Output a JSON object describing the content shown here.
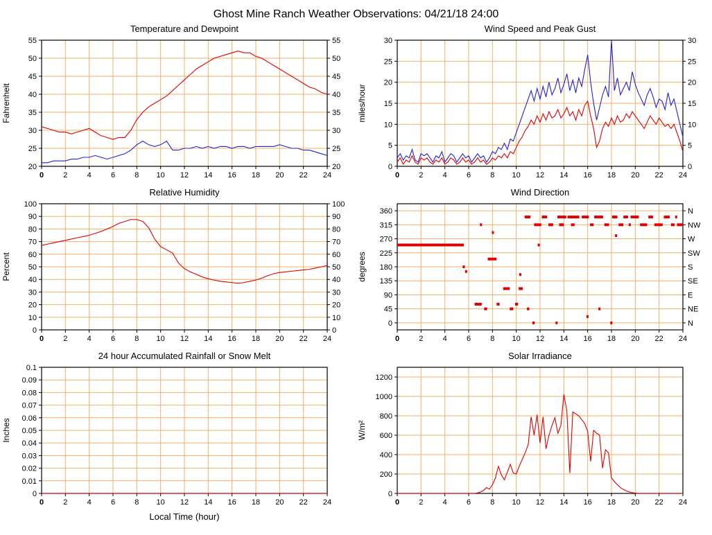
{
  "page_title": "Ghost Mine Ranch Weather Observations: 04/21/18 24:00",
  "colors": {
    "red": "#e00000",
    "blue": "#2020d0",
    "grid": "#efb267",
    "axis": "#000000",
    "plot_bg": "#ffffff"
  },
  "x_axis": {
    "min": 0,
    "max": 24,
    "ticks": [
      0,
      2,
      4,
      6,
      8,
      10,
      12,
      14,
      16,
      18,
      20,
      22,
      24
    ]
  },
  "chart_data": [
    {
      "id": "temperature-dewpoint",
      "type": "line",
      "title": "Temperature and Dewpoint",
      "ylabel": "Fahrenheit",
      "ylim": [
        20,
        55
      ],
      "yticks": [
        20,
        25,
        30,
        35,
        40,
        45,
        50,
        55
      ],
      "right": "mirror",
      "series": [
        {
          "name": "temperature",
          "color": "red",
          "x0": 0,
          "dx": 0.5,
          "y": [
            31,
            30.5,
            30,
            29.5,
            29.5,
            29,
            29.5,
            30,
            30.5,
            29.5,
            28.5,
            28,
            27.5,
            28,
            28,
            30,
            33,
            35,
            36.5,
            37.5,
            38.5,
            39.5,
            41,
            42.5,
            44,
            45.5,
            47,
            48,
            49,
            50,
            50.5,
            51,
            51.5,
            52,
            51.5,
            51.5,
            50.5,
            50,
            49,
            48,
            47,
            46,
            45,
            44,
            43,
            42,
            41.5,
            40.5,
            40
          ]
        },
        {
          "name": "dewpoint",
          "color": "blue",
          "x0": 0,
          "dx": 0.5,
          "y": [
            21,
            21,
            21.5,
            21.5,
            21.5,
            22,
            22,
            22.5,
            22.5,
            23,
            22.5,
            22,
            22.5,
            23,
            23.5,
            24.5,
            26,
            27,
            26,
            25.5,
            26,
            27,
            24.5,
            24.5,
            25,
            25,
            25.5,
            25,
            25.5,
            25,
            25.5,
            25.5,
            25,
            25.5,
            25.5,
            25,
            25.5,
            25.5,
            25.5,
            25.5,
            26,
            25.5,
            25,
            25,
            24.5,
            24.5,
            24,
            23.5,
            23
          ]
        }
      ]
    },
    {
      "id": "wind-speed-peak-gust",
      "type": "line",
      "title": "Wind Speed and Peak Gust",
      "ylabel": "miles/hour",
      "ylim": [
        0,
        30
      ],
      "yticks": [
        0,
        5,
        10,
        15,
        20,
        25,
        30
      ],
      "right": "mirror",
      "series": [
        {
          "name": "peak-gust",
          "color": "blue",
          "x0": 0,
          "dx": 0.25,
          "y": [
            2,
            3,
            1.5,
            2.5,
            2,
            4,
            1.5,
            1,
            3,
            2.5,
            3,
            2,
            1,
            2.5,
            2,
            3.5,
            1,
            2,
            3,
            2.5,
            1,
            2,
            3,
            2,
            2.5,
            1,
            2,
            3,
            2,
            2.5,
            1,
            2,
            3.5,
            3,
            4.5,
            4,
            5.5,
            4,
            6.5,
            6,
            8,
            10,
            12,
            14,
            16,
            18,
            15.5,
            18.5,
            16,
            19,
            16.5,
            20,
            17,
            18.5,
            21,
            17.5,
            19.5,
            22,
            18,
            20.5,
            17.5,
            21,
            19,
            23,
            26.5,
            20,
            15,
            11,
            14,
            17,
            19,
            16.5,
            30,
            18,
            21,
            17,
            18.5,
            20,
            18,
            22.5,
            19.5,
            17.5,
            16,
            14.5,
            17,
            18.5,
            16.5,
            14,
            16,
            15.5,
            13.5,
            17.5,
            14.5,
            16,
            13,
            10,
            7
          ]
        },
        {
          "name": "wind-speed",
          "color": "red",
          "x0": 0,
          "dx": 0.25,
          "y": [
            1,
            2,
            0.5,
            1.5,
            1,
            2.5,
            1,
            0.5,
            2,
            1.5,
            2,
            1,
            0.5,
            1.5,
            1,
            2,
            0.5,
            1,
            2,
            1.5,
            0.5,
            1,
            2,
            1,
            1.5,
            0.5,
            1,
            2,
            1,
            1.5,
            0.5,
            1,
            2,
            1.5,
            2.5,
            2,
            3,
            2,
            3.5,
            3,
            4.5,
            6,
            7,
            8.5,
            9.5,
            11,
            10,
            12,
            10.5,
            12.5,
            11,
            13,
            11.5,
            12,
            13.5,
            11.5,
            12.5,
            14,
            12,
            13,
            11,
            13.5,
            12,
            14.5,
            15.5,
            12,
            9,
            4.5,
            6,
            9,
            10.5,
            9.5,
            11.5,
            10,
            12,
            10.5,
            11,
            12.5,
            11.5,
            13,
            12,
            11,
            10,
            9,
            10.5,
            12,
            11,
            10,
            11.5,
            10.5,
            9.5,
            10,
            9,
            10,
            8,
            6,
            3.5
          ]
        }
      ]
    },
    {
      "id": "relative-humidity",
      "type": "line",
      "title": "Relative Humidity",
      "ylabel": "Percent",
      "ylim": [
        0,
        100
      ],
      "yticks": [
        0,
        10,
        20,
        30,
        40,
        50,
        60,
        70,
        80,
        90,
        100
      ],
      "right": "mirror",
      "series": [
        {
          "name": "humidity",
          "color": "red",
          "x0": 0,
          "dx": 0.5,
          "y": [
            67,
            68,
            69,
            70,
            71,
            72,
            73,
            74,
            75,
            76.5,
            78,
            80,
            82,
            84.5,
            86,
            87.5,
            87.5,
            86,
            81,
            72,
            66,
            63.5,
            61,
            53,
            48.5,
            46,
            44,
            42,
            40.5,
            39.5,
            38.5,
            38,
            37.5,
            37,
            37.5,
            38.5,
            39.5,
            41,
            43,
            44.5,
            45.5,
            46,
            46.5,
            47,
            47.5,
            48,
            49,
            50,
            51
          ]
        }
      ]
    },
    {
      "id": "wind-direction",
      "type": "runs",
      "title": "Wind Direction",
      "ylabel": "degrees",
      "ylim": [
        -22.5,
        382.5
      ],
      "yticks": [
        0,
        45,
        90,
        135,
        180,
        225,
        270,
        315,
        360
      ],
      "right": {
        "values": [
          0,
          45,
          90,
          135,
          180,
          225,
          270,
          315,
          360
        ],
        "labels": [
          "N",
          "NE",
          "E",
          "SE",
          "S",
          "SW",
          "W",
          "NW",
          "N"
        ]
      },
      "runs": [
        [
          0.0,
          5.6,
          250
        ],
        [
          5.5,
          5.65,
          180
        ],
        [
          5.7,
          5.85,
          165
        ],
        [
          6.5,
          7.1,
          60
        ],
        [
          6.95,
          7.05,
          315
        ],
        [
          7.3,
          7.55,
          45
        ],
        [
          7.6,
          8.35,
          205
        ],
        [
          7.95,
          8.1,
          290
        ],
        [
          8.35,
          8.6,
          60
        ],
        [
          8.9,
          9.45,
          110
        ],
        [
          9.45,
          9.75,
          45
        ],
        [
          9.9,
          10.15,
          60
        ],
        [
          10.2,
          10.55,
          110
        ],
        [
          10.25,
          10.4,
          155
        ],
        [
          10.7,
          11.2,
          340
        ],
        [
          10.9,
          11.1,
          45
        ],
        [
          11.35,
          11.55,
          0
        ],
        [
          11.5,
          12.1,
          315
        ],
        [
          11.8,
          11.9,
          250
        ],
        [
          12.15,
          12.6,
          340
        ],
        [
          12.7,
          13.1,
          315
        ],
        [
          13.3,
          13.4,
          0
        ],
        [
          13.45,
          14.2,
          340
        ],
        [
          13.6,
          14.0,
          315
        ],
        [
          14.3,
          15.3,
          340
        ],
        [
          14.6,
          14.9,
          315
        ],
        [
          15.5,
          16.1,
          340
        ],
        [
          15.9,
          16.0,
          20
        ],
        [
          16.2,
          16.5,
          315
        ],
        [
          16.55,
          17.3,
          340
        ],
        [
          16.9,
          17.0,
          45
        ],
        [
          17.4,
          17.8,
          315
        ],
        [
          17.9,
          18.0,
          0
        ],
        [
          18.05,
          18.5,
          340
        ],
        [
          18.3,
          18.4,
          280
        ],
        [
          18.6,
          19.0,
          315
        ],
        [
          19.0,
          19.4,
          340
        ],
        [
          19.45,
          19.6,
          315
        ],
        [
          19.6,
          20.3,
          340
        ],
        [
          20.4,
          21.0,
          315
        ],
        [
          21.1,
          21.5,
          340
        ],
        [
          21.6,
          22.3,
          315
        ],
        [
          22.4,
          22.9,
          340
        ],
        [
          23.0,
          23.3,
          315
        ],
        [
          23.35,
          23.5,
          340
        ],
        [
          23.5,
          24.0,
          315
        ]
      ]
    },
    {
      "id": "rainfall",
      "type": "line",
      "title": "24 hour Accumulated Rainfall or Snow Melt",
      "ylabel": "Inches",
      "xlabel": "Local Time (hour)",
      "ylim": [
        0,
        0.1
      ],
      "yticks": [
        0,
        0.01,
        0.02,
        0.03,
        0.04,
        0.05,
        0.06,
        0.07,
        0.08,
        0.09,
        0.1
      ],
      "right": null,
      "series": [
        {
          "name": "rainfall",
          "color": "red",
          "x0": 0,
          "dx": 24,
          "y": [
            0,
            0
          ]
        }
      ]
    },
    {
      "id": "solar-irradiance",
      "type": "line",
      "title": "Solar Irradiance",
      "ylabel": "W/m²",
      "ylim": [
        0,
        1300
      ],
      "yticks": [
        0,
        200,
        400,
        600,
        800,
        1000,
        1200
      ],
      "right": null,
      "series": [
        {
          "name": "solar",
          "color": "red",
          "x0": 0,
          "dx": 0.25,
          "y": [
            0,
            0,
            0,
            0,
            0,
            0,
            0,
            0,
            0,
            0,
            0,
            0,
            0,
            0,
            0,
            0,
            0,
            0,
            0,
            0,
            0,
            0,
            0,
            0,
            0,
            0,
            0,
            5,
            15,
            30,
            60,
            45,
            90,
            160,
            280,
            190,
            140,
            220,
            300,
            210,
            200,
            280,
            350,
            420,
            500,
            790,
            600,
            810,
            520,
            790,
            460,
            600,
            700,
            780,
            620,
            700,
            1020,
            850,
            210,
            840,
            820,
            800,
            760,
            720,
            640,
            330,
            650,
            620,
            600,
            260,
            450,
            420,
            160,
            120,
            90,
            60,
            40,
            25,
            15,
            8,
            3,
            0,
            0,
            0,
            0,
            0,
            0,
            0,
            0,
            0,
            0,
            0,
            0,
            0,
            0,
            0,
            0
          ]
        }
      ]
    }
  ]
}
